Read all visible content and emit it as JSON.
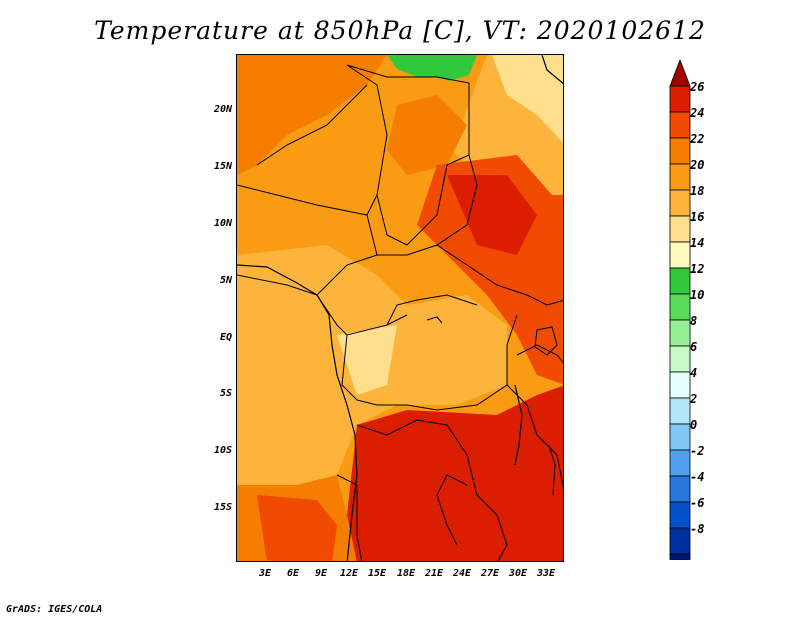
{
  "title": "Temperature at 850hPa [C], VT: 2020102612",
  "credit": "GrADS: IGES/COLA",
  "map": {
    "lat_labels": [
      "20N",
      "15N",
      "10N",
      "5N",
      "EQ",
      "5S",
      "10S",
      "15S"
    ],
    "lon_labels": [
      "3E",
      "6E",
      "9E",
      "12E",
      "15E",
      "18E",
      "21E",
      "24E",
      "27E",
      "30E",
      "33E"
    ]
  },
  "colorbar": {
    "labels": [
      "26",
      "24",
      "22",
      "20",
      "18",
      "16",
      "14",
      "12",
      "10",
      "8",
      "6",
      "4",
      "2",
      "0",
      "-2",
      "-4",
      "-6",
      "-8"
    ],
    "colors": [
      "#a50000",
      "#dc1e00",
      "#f04b00",
      "#f57d00",
      "#fa9b14",
      "#fdb43c",
      "#fee08c",
      "#fffabe",
      "#32c83c",
      "#5adc5a",
      "#96f096",
      "#c8fac8",
      "#e6ffff",
      "#b4e6fa",
      "#82c8f5",
      "#50a0f0",
      "#2878dc",
      "#0050c8",
      "#0030a0",
      "#001478",
      "#e6e6fa"
    ]
  }
}
